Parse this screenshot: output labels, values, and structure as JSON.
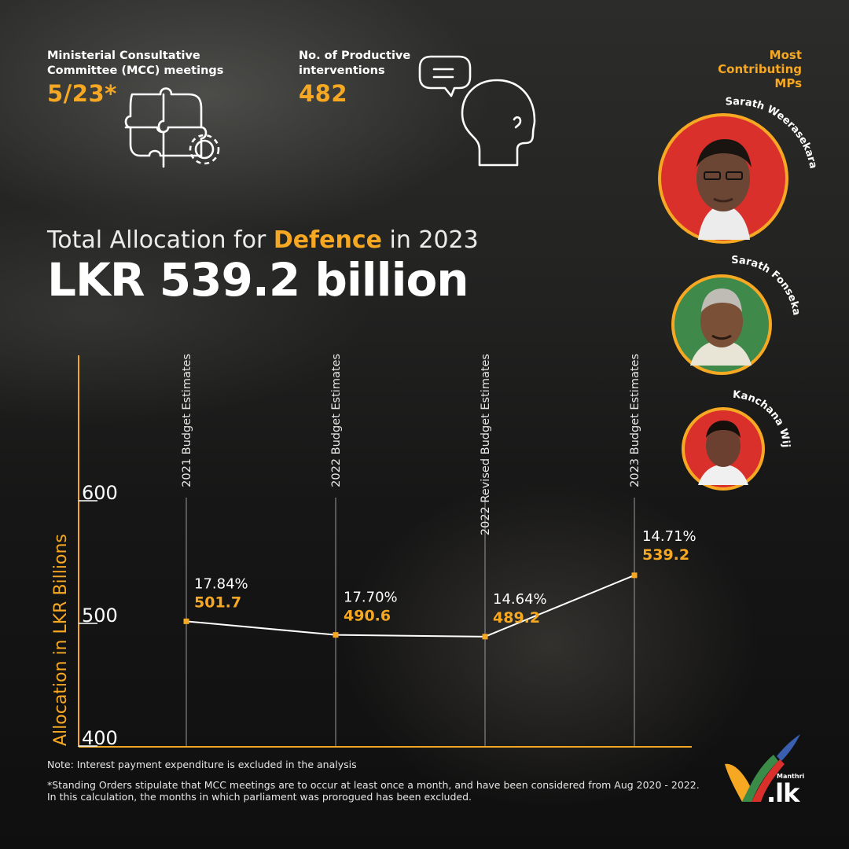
{
  "stats": {
    "mcc_label_line1": "Ministerial Consultative",
    "mcc_label_line2": "Committee (MCC) meetings",
    "mcc_value": "5/23*",
    "interventions_label_line1": "No. of Productive",
    "interventions_label_line2": "interventions",
    "interventions_value": "482"
  },
  "mps": {
    "heading_line1": "Most",
    "heading_line2": "Contributing",
    "heading_line3": "MPs",
    "items": [
      {
        "name": "Sarath Weerasekara",
        "ring_color": "#f7a823",
        "bg_color": "#d9302c"
      },
      {
        "name": "Sarath Fonseka",
        "ring_color": "#f7a823",
        "bg_color": "#3f8a4a"
      },
      {
        "name": "Kanchana Wijesekara",
        "ring_color": "#f7a823",
        "bg_color": "#d9302c"
      }
    ]
  },
  "headline": {
    "prefix": "Total Allocation for ",
    "highlight": "Defence",
    "suffix": " in 2023",
    "value": "LKR 539.2 billion"
  },
  "chart_data": {
    "type": "line",
    "ylabel": "Allocation in LKR Billions",
    "ylim": [
      400,
      600
    ],
    "yticks": [
      "600",
      "500",
      "400"
    ],
    "categories": [
      "2021 Budget Estimates",
      "2022 Budget Estimates",
      "2022 Revised Budget Estimates",
      "2023 Budget Estimates"
    ],
    "values": [
      501.7,
      490.6,
      489.2,
      539.2
    ],
    "value_labels": [
      "501.7",
      "490.6",
      "489.2",
      "539.2"
    ],
    "percent_labels": [
      "17.84%",
      "17.70%",
      "14.64%",
      "14.71%"
    ],
    "grid": "vertical lines at categories"
  },
  "notes": {
    "line1": "Note: Interest payment expenditure is excluded in the analysis",
    "line2": "*Standing Orders stipulate that MCC meetings are to occur at least once a month, and have been considered from Aug 2020 - 2022.",
    "line3": "In this calculation, the months in which parliament was prorogued has been excluded."
  },
  "brand": {
    "small": "Manthri",
    "name": ".lk"
  },
  "colors": {
    "accent": "#f7a823",
    "text": "#ffffff",
    "background": "#1a1a1a"
  },
  "icons": [
    "puzzle-head-icon",
    "gear-icon",
    "speech-bubble-icon",
    "head-profile-icon",
    "checkmark-logo-icon"
  ]
}
